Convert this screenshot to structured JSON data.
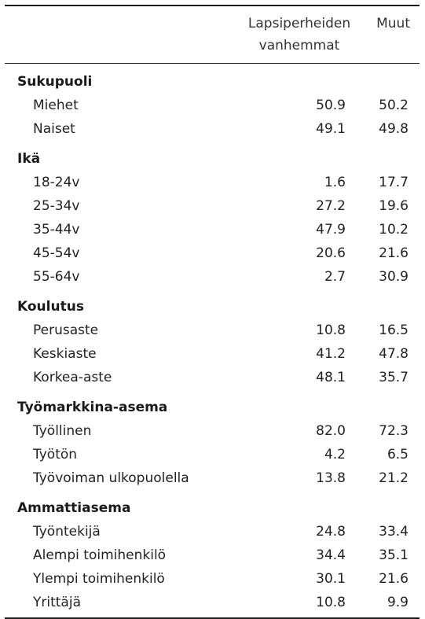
{
  "header": {
    "col_a_line1": "Lapsiperheiden",
    "col_a_line2": "vanhemmat",
    "col_b": "Muut"
  },
  "groups": [
    {
      "title": "Sukupuoli",
      "rows": [
        {
          "label": "Miehet",
          "a": "50.9",
          "b": "50.2"
        },
        {
          "label": "Naiset",
          "a": "49.1",
          "b": "49.8"
        }
      ]
    },
    {
      "title": "Ikä",
      "rows": [
        {
          "label": "18-24v",
          "a": "1.6",
          "b": "17.7"
        },
        {
          "label": "25-34v",
          "a": "27.2",
          "b": "19.6"
        },
        {
          "label": "35-44v",
          "a": "47.9",
          "b": "10.2"
        },
        {
          "label": "45-54v",
          "a": "20.6",
          "b": "21.6"
        },
        {
          "label": "55-64v",
          "a": "2.7",
          "b": "30.9"
        }
      ]
    },
    {
      "title": "Koulutus",
      "rows": [
        {
          "label": "Perusaste",
          "a": "10.8",
          "b": "16.5"
        },
        {
          "label": "Keskiaste",
          "a": "41.2",
          "b": "47.8"
        },
        {
          "label": "Korkea-aste",
          "a": "48.1",
          "b": "35.7"
        }
      ]
    },
    {
      "title": "Työmarkkina-asema",
      "rows": [
        {
          "label": "Työllinen",
          "a": "82.0",
          "b": "72.3"
        },
        {
          "label": "Työtön",
          "a": "4.2",
          "b": "6.5"
        },
        {
          "label": "Työvoiman ulkopuolella",
          "a": "13.8",
          "b": "21.2"
        }
      ]
    },
    {
      "title": "Ammattiasema",
      "rows": [
        {
          "label": "Työntekijä",
          "a": "24.8",
          "b": "33.4"
        },
        {
          "label": "Alempi toimihenkilö",
          "a": "34.4",
          "b": "35.1"
        },
        {
          "label": "Ylempi toimihenkilö",
          "a": "30.1",
          "b": "21.6"
        },
        {
          "label": "Yrittäjä",
          "a": "10.8",
          "b": "9.9"
        }
      ]
    }
  ]
}
